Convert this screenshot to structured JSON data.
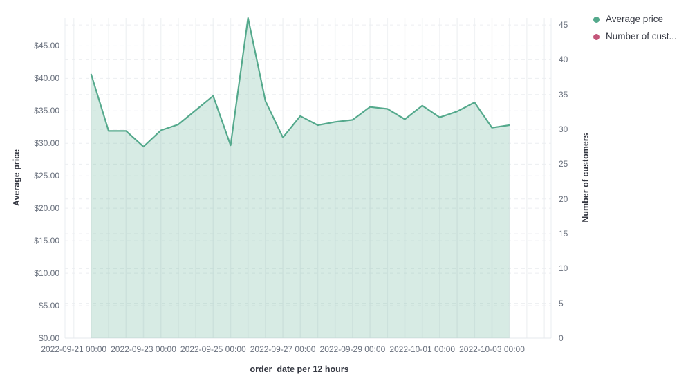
{
  "legend": {
    "position": "top-right",
    "items": [
      {
        "label": "Average price",
        "color": "#54A98C"
      },
      {
        "label": "Number of cust...",
        "color": "#C4567A"
      }
    ]
  },
  "chart_data": {
    "type": "area",
    "title": "",
    "grid": true,
    "legend_position": "top-right",
    "xlabel": "order_date per 12 hours",
    "x_axis": {
      "title": "order_date per 12 hours",
      "tick_labels": [
        "2022-09-21 00:00",
        "2022-09-23 00:00",
        "2022-09-25 00:00",
        "2022-09-27 00:00",
        "2022-09-29 00:00",
        "2022-10-01 00:00",
        "2022-10-03 00:00"
      ]
    },
    "left_axis": {
      "title": "Average price",
      "range": [
        0,
        49.3
      ],
      "tick_values": [
        0,
        5,
        10,
        15,
        20,
        25,
        30,
        35,
        40,
        45
      ],
      "tick_labels": [
        "$0.00",
        "$5.00",
        "$10.00",
        "$15.00",
        "$20.00",
        "$25.00",
        "$30.00",
        "$35.00",
        "$40.00",
        "$45.00"
      ]
    },
    "right_axis": {
      "title": "Number of customers",
      "range": [
        0,
        46
      ],
      "tick_values": [
        0,
        5,
        10,
        15,
        20,
        25,
        30,
        35,
        40,
        45
      ],
      "tick_labels": [
        "0",
        "5",
        "10",
        "15",
        "20",
        "25",
        "30",
        "35",
        "40",
        "45"
      ]
    },
    "x": [
      "2022-09-21 12:00",
      "2022-09-22 00:00",
      "2022-09-22 12:00",
      "2022-09-23 00:00",
      "2022-09-23 12:00",
      "2022-09-24 00:00",
      "2022-09-24 12:00",
      "2022-09-25 00:00",
      "2022-09-25 12:00",
      "2022-09-26 00:00",
      "2022-09-26 12:00",
      "2022-09-27 00:00",
      "2022-09-27 12:00",
      "2022-09-28 00:00",
      "2022-09-28 12:00",
      "2022-09-29 00:00",
      "2022-09-29 12:00",
      "2022-09-30 00:00",
      "2022-09-30 12:00",
      "2022-10-01 00:00",
      "2022-10-01 12:00",
      "2022-10-02 00:00",
      "2022-10-02 12:00",
      "2022-10-03 00:00",
      "2022-10-03 12:00"
    ],
    "series": [
      {
        "name": "Average price",
        "axis": "left",
        "color": "#54A98C",
        "fill": "rgba(84,169,140,0.23)",
        "values": [
          40.6,
          31.9,
          31.9,
          29.5,
          32.0,
          32.9,
          35.1,
          37.3,
          29.7,
          49.3,
          36.5,
          30.9,
          34.2,
          32.8,
          33.3,
          33.6,
          35.6,
          35.3,
          33.7,
          35.8,
          34.0,
          34.9,
          36.3,
          32.4,
          32.8
        ]
      },
      {
        "name": "Number of customers",
        "axis": "right",
        "color": "#C4567A",
        "visible_in_plot": false,
        "values": []
      }
    ]
  }
}
